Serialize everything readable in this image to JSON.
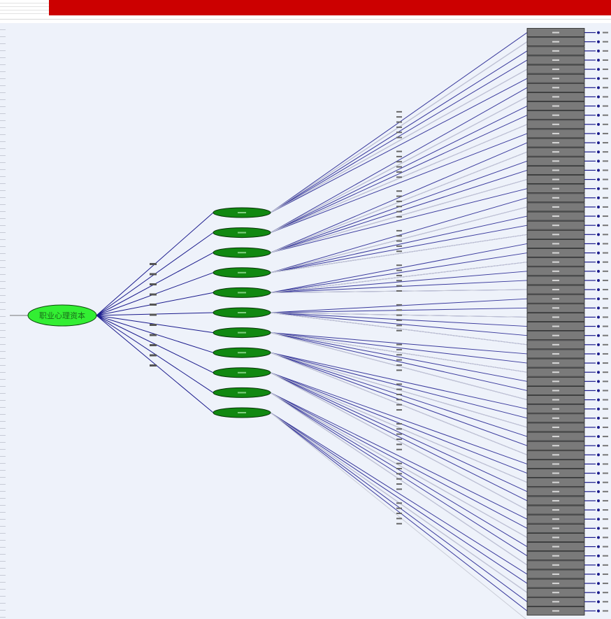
{
  "diagram": {
    "title": "",
    "root_label": "职业心理资本",
    "colors": {
      "root_fill": "#33ee33",
      "factor_fill": "#118811",
      "indicator_fill": "#7a7a7a",
      "line": "#1a1a8c",
      "canvas": "#eef2fa",
      "banner": "#cc0000"
    },
    "factor_count": 11,
    "indicator_count": 64
  }
}
